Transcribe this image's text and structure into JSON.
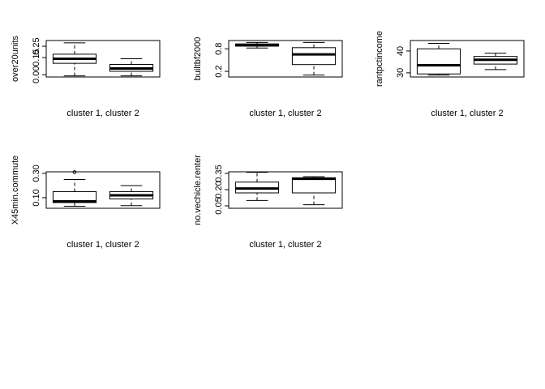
{
  "chart_data": [
    {
      "type": "box",
      "ylabel": "over20units",
      "xlabel": "cluster 1, cluster 2",
      "ylim": [
        -0.02,
        0.3
      ],
      "yticks": [
        {
          "value": 0,
          "label": "0.00"
        },
        {
          "value": 0.15,
          "label": "0.15"
        },
        {
          "value": 0.25,
          "label": "0.25"
        }
      ],
      "boxes": [
        {
          "low": -0.01,
          "q1": 0.1,
          "median": 0.14,
          "q3": 0.18,
          "high": 0.28
        },
        {
          "low": -0.01,
          "q1": 0.03,
          "median": 0.055,
          "q3": 0.09,
          "high": 0.14
        }
      ]
    },
    {
      "type": "box",
      "ylabel": "builtbf2000",
      "xlabel": "cluster 1, cluster 2",
      "ylim": [
        0.05,
        1.02
      ],
      "yticks": [
        0.2,
        0.8
      ],
      "boxes": [
        {
          "low": 0.82,
          "q1": 0.87,
          "median": 0.9,
          "q3": 0.93,
          "high": 0.97
        },
        {
          "low": 0.1,
          "q1": 0.38,
          "median": 0.65,
          "q3": 0.83,
          "high": 0.97
        }
      ]
    },
    {
      "type": "box",
      "ylabel": "rantpctincome",
      "xlabel": "cluster 1, cluster 2",
      "ylim": [
        28.1,
        44.8
      ],
      "yticks": [
        30,
        40
      ],
      "boxes": [
        {
          "low": 29,
          "q1": 29.5,
          "median": 33.5,
          "q3": 41,
          "high": 43.5
        },
        {
          "low": 31.5,
          "q1": 34,
          "median": 36,
          "q3": 37.5,
          "high": 39
        }
      ]
    },
    {
      "type": "box",
      "ylabel": "X45min.commute",
      "xlabel": "cluster 1, cluster 2",
      "ylim": [
        0.013,
        0.313
      ],
      "yticks": [
        {
          "value": 0.1,
          "label": "0.10"
        },
        {
          "value": 0.3,
          "label": "0.30"
        }
      ],
      "boxes": [
        {
          "low": 0.03,
          "q1": 0.06,
          "median": 0.07,
          "q3": 0.15,
          "high": 0.25,
          "outliers": [
            0.31
          ]
        },
        {
          "low": 0.035,
          "q1": 0.09,
          "median": 0.12,
          "q3": 0.15,
          "high": 0.2
        }
      ]
    },
    {
      "type": "box",
      "ylabel": "no.vechicle.renter",
      "xlabel": "cluster 1, cluster 2",
      "ylim": [
        0.0275,
        0.365
      ],
      "yticks": [
        0.05,
        {
          "value": 0.2,
          "label": "0.20"
        },
        0.35
      ],
      "boxes": [
        {
          "low": 0.1,
          "q1": 0.17,
          "median": 0.21,
          "q3": 0.27,
          "high": 0.36
        },
        {
          "low": 0.06,
          "q1": 0.17,
          "median": 0.3,
          "q3": 0.31,
          "high": 0.32
        }
      ]
    }
  ]
}
